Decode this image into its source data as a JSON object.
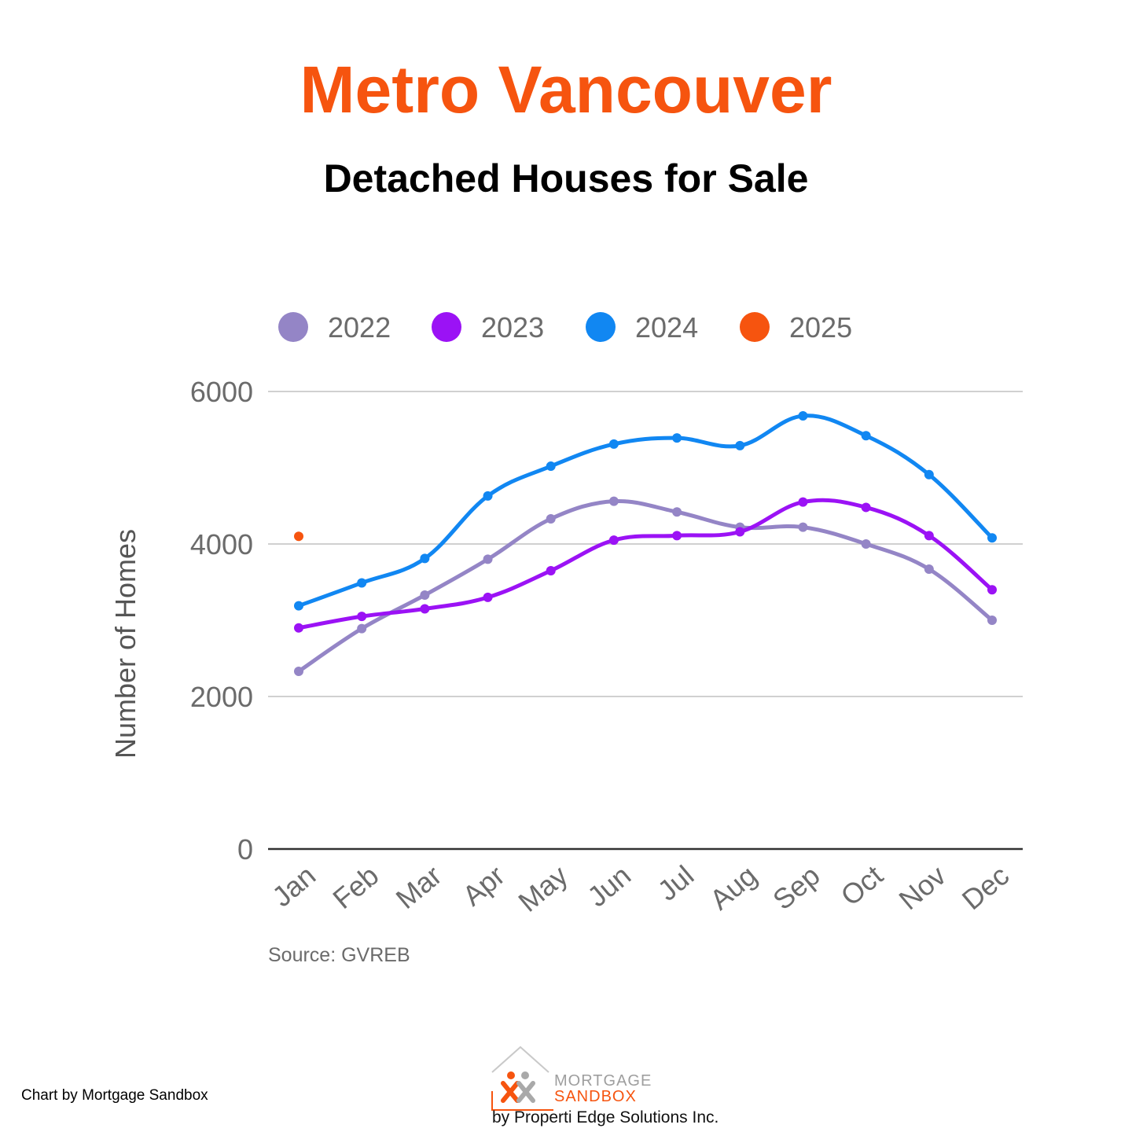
{
  "header": {
    "title": "Metro Vancouver",
    "subtitle": "Detached Houses for Sale"
  },
  "colors": {
    "title": "#f6540f",
    "2022": "#9485c6",
    "2023": "#9b12f5",
    "2024": "#1187f2",
    "2025": "#f6540f"
  },
  "chart_data": {
    "type": "line",
    "title": "Detached Houses for Sale",
    "xlabel": "",
    "ylabel": "Number of Homes",
    "categories": [
      "Jan",
      "Feb",
      "Mar",
      "Apr",
      "May",
      "Jun",
      "Jul",
      "Aug",
      "Sep",
      "Oct",
      "Nov",
      "Dec"
    ],
    "ylim": [
      0,
      6000
    ],
    "yticks": [
      "0",
      "2000",
      "4000",
      "6000"
    ],
    "grid": true,
    "legend_position": "top",
    "series": [
      {
        "name": "2022",
        "color": "#9485c6",
        "values": [
          2330,
          2890,
          3330,
          3800,
          4330,
          4560,
          4420,
          4220,
          4220,
          4000,
          3670,
          3000
        ]
      },
      {
        "name": "2023",
        "color": "#9b12f5",
        "values": [
          2900,
          3050,
          3150,
          3300,
          3650,
          4050,
          4110,
          4160,
          4550,
          4480,
          4110,
          3400
        ]
      },
      {
        "name": "2024",
        "color": "#1187f2",
        "values": [
          3190,
          3490,
          3810,
          4630,
          5020,
          5310,
          5390,
          5290,
          5680,
          5420,
          4910,
          4080
        ]
      },
      {
        "name": "2025",
        "color": "#f6540f",
        "values": [
          4100,
          null,
          null,
          null,
          null,
          null,
          null,
          null,
          null,
          null,
          null,
          null
        ]
      }
    ],
    "source": "Source: GVREB"
  },
  "footer": {
    "credit": "Chart by Mortgage Sandbox",
    "logo_word1": "MORTGAGE",
    "logo_word2": "SANDBOX",
    "logo_tagline": "by Properti Edge Solutions Inc."
  }
}
